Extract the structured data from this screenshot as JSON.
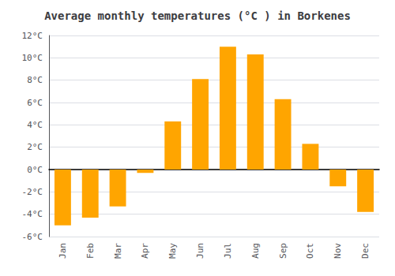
{
  "chart_data": {
    "type": "bar",
    "title": "Average monthly temperatures (°C ) in Borkenes",
    "categories": [
      "Jan",
      "Feb",
      "Mar",
      "Apr",
      "May",
      "Jun",
      "Jul",
      "Aug",
      "Sep",
      "Oct",
      "Nov",
      "Dec"
    ],
    "values": [
      -5.0,
      -4.3,
      -3.3,
      -0.3,
      4.3,
      8.1,
      11.0,
      10.3,
      6.3,
      2.3,
      -1.5,
      -3.8
    ],
    "color": "#FFA500",
    "ylim": [
      -6,
      12
    ],
    "yticks": [
      {
        "value": -6,
        "label": "-6°C"
      },
      {
        "value": -4,
        "label": "-4°C"
      },
      {
        "value": -2,
        "label": "-2°C"
      },
      {
        "value": 0,
        "label": "0°C"
      },
      {
        "value": 2,
        "label": "2°C"
      },
      {
        "value": 4,
        "label": "4°C"
      },
      {
        "value": 6,
        "label": "6°C"
      },
      {
        "value": 8,
        "label": "8°C"
      },
      {
        "value": 10,
        "label": "10°C"
      },
      {
        "value": 12,
        "label": "12°C"
      }
    ],
    "grid": true
  }
}
